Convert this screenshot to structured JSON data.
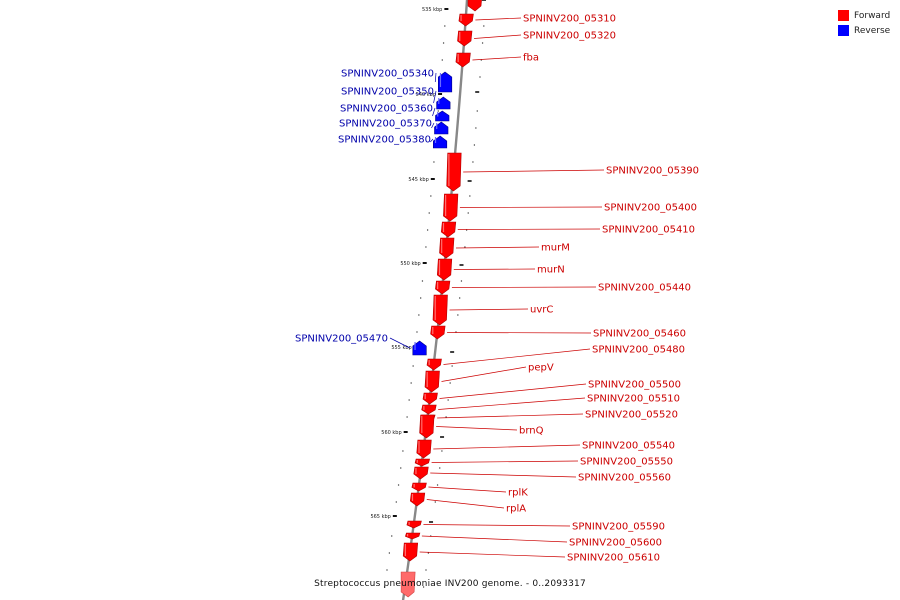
{
  "caption": "Streptococcus pneumoniae INV200 genome. - 0..2093317",
  "legend": [
    {
      "label": "Forward",
      "color": "#ff0000"
    },
    {
      "label": "Reverse",
      "color": "#0000ff"
    }
  ],
  "colors": {
    "forward": "#ff0000",
    "reverse": "#0000ff",
    "forward_label": "#cc0000",
    "reverse_label": "#0000aa",
    "backbone": "#888888"
  },
  "ruler": {
    "unit": "kbp",
    "labels": [
      "535 kbp",
      "540 kbp",
      "545 kbp",
      "550 kbp",
      "555 kbp",
      "560 kbp",
      "565 kbp"
    ]
  },
  "genes": [
    {
      "name": "SPNINV200_05310",
      "strand": "forward"
    },
    {
      "name": "SPNINV200_05320",
      "strand": "forward"
    },
    {
      "name": "fba",
      "strand": "forward"
    },
    {
      "name": "SPNINV200_05340",
      "strand": "reverse"
    },
    {
      "name": "SPNINV200_05350",
      "strand": "reverse"
    },
    {
      "name": "SPNINV200_05360",
      "strand": "reverse"
    },
    {
      "name": "SPNINV200_05370",
      "strand": "reverse"
    },
    {
      "name": "SPNINV200_05380",
      "strand": "reverse"
    },
    {
      "name": "SPNINV200_05390",
      "strand": "forward"
    },
    {
      "name": "SPNINV200_05400",
      "strand": "forward"
    },
    {
      "name": "SPNINV200_05410",
      "strand": "forward"
    },
    {
      "name": "murM",
      "strand": "forward"
    },
    {
      "name": "murN",
      "strand": "forward"
    },
    {
      "name": "SPNINV200_05440",
      "strand": "forward"
    },
    {
      "name": "uvrC",
      "strand": "forward"
    },
    {
      "name": "SPNINV200_05460",
      "strand": "forward"
    },
    {
      "name": "SPNINV200_05470",
      "strand": "reverse"
    },
    {
      "name": "SPNINV200_05480",
      "strand": "forward"
    },
    {
      "name": "pepV",
      "strand": "forward"
    },
    {
      "name": "SPNINV200_05500",
      "strand": "forward"
    },
    {
      "name": "SPNINV200_05510",
      "strand": "forward"
    },
    {
      "name": "SPNINV200_05520",
      "strand": "forward"
    },
    {
      "name": "brnQ",
      "strand": "forward"
    },
    {
      "name": "SPNINV200_05540",
      "strand": "forward"
    },
    {
      "name": "SPNINV200_05550",
      "strand": "forward"
    },
    {
      "name": "SPNINV200_05560",
      "strand": "forward"
    },
    {
      "name": "rplK",
      "strand": "forward"
    },
    {
      "name": "rplA",
      "strand": "forward"
    },
    {
      "name": "SPNINV200_05590",
      "strand": "forward"
    },
    {
      "name": "SPNINV200_05600",
      "strand": "forward"
    },
    {
      "name": "SPNINV200_05610",
      "strand": "forward"
    }
  ]
}
